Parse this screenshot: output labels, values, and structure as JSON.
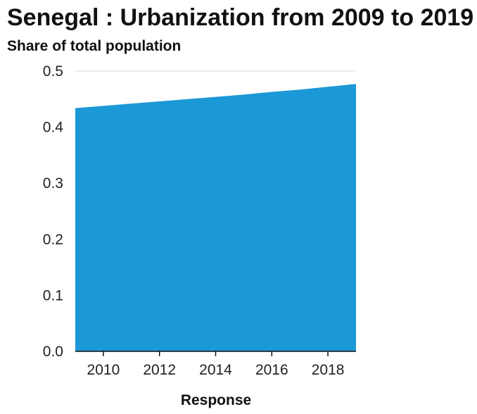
{
  "chart_data": {
    "type": "area",
    "title": "Senegal : Urbanization from 2009 to 2019",
    "ylabel": "Share of total population",
    "xlabel": "Response",
    "x": [
      2009,
      2010,
      2011,
      2012,
      2013,
      2014,
      2015,
      2016,
      2017,
      2018,
      2019
    ],
    "series": [
      {
        "values": [
          0.434,
          0.438,
          0.442,
          0.446,
          0.45,
          0.454,
          0.458,
          0.463,
          0.467,
          0.472,
          0.477
        ]
      }
    ],
    "xlim": [
      2009,
      2019
    ],
    "ylim": [
      0,
      0.5
    ],
    "xticks": [
      "2010",
      "2012",
      "2014",
      "2016",
      "2018"
    ],
    "yticks": [
      "0.0",
      "0.1",
      "0.2",
      "0.3",
      "0.4",
      "0.5"
    ],
    "grid": "horizontal",
    "legend": "none",
    "colors": {
      "fill": "#1b98d6",
      "grid": "#dddddd",
      "axis": "#111111"
    }
  }
}
